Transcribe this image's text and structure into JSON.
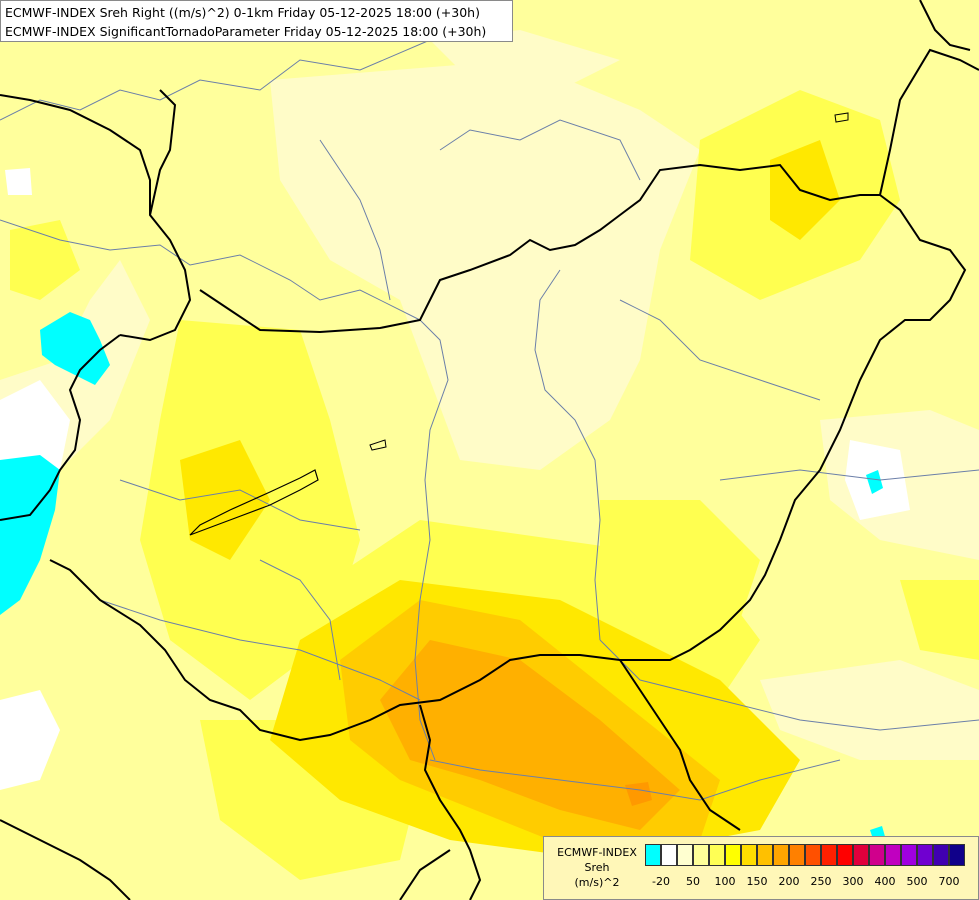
{
  "titles": {
    "line1": "ECMWF-INDEX Sreh Right ((m/s)^2) 0-1km Friday 05-12-2025 18:00 (+30h)",
    "line2": "ECMWF-INDEX SignificantTornadoParameter Friday 05-12-2025 18:00 (+30h)"
  },
  "legend": {
    "name_line1": "ECMWF-INDEX",
    "name_line2": "Sreh",
    "name_line3": "(m/s)^2",
    "colors": [
      "#00ffff",
      "#ffffff",
      "#ffffd0",
      "#ffff99",
      "#ffff55",
      "#ffff00",
      "#ffdd00",
      "#ffc000",
      "#ffa500",
      "#ff8000",
      "#ff5000",
      "#ff2000",
      "#ff0000",
      "#e0003c",
      "#d0008c",
      "#c000c0",
      "#a000e0",
      "#7000d0",
      "#4000b0",
      "#10008a"
    ],
    "ticks": [
      "-20",
      "50",
      "100",
      "150",
      "200",
      "250",
      "300",
      "400",
      "500",
      "700"
    ]
  },
  "map_colors": {
    "lightest": "#fffcc8",
    "light": "#ffff9c",
    "medium": "#ffff50",
    "strong": "#ffe800",
    "orange_light": "#ffcc00",
    "orange": "#ffb000",
    "orange_dark": "#ff9900",
    "negative": "#00ffff",
    "white": "#ffffff"
  }
}
